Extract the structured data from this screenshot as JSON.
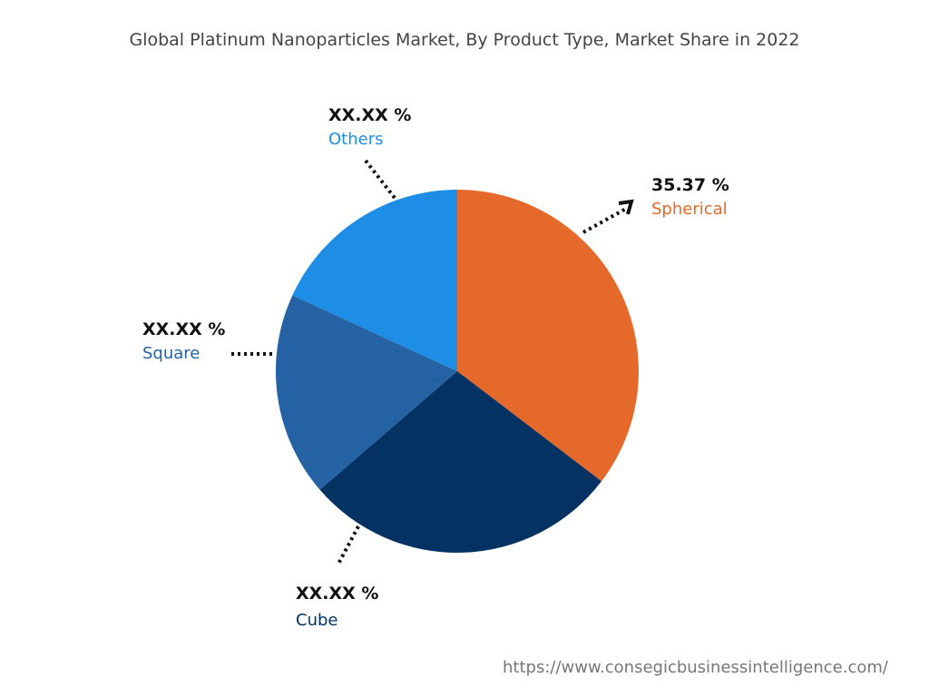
{
  "chart_data": {
    "type": "pie",
    "title": "Global Platinum Nanoparticles Market, By Product Type, Market Share in 2022",
    "slices": [
      {
        "name": "Spherical",
        "value": 35.37,
        "label": "35.37 %",
        "color": "#E4692A"
      },
      {
        "name": "Cube",
        "value": 28.3,
        "label": "XX.XX %",
        "color": "#033263"
      },
      {
        "name": "Square",
        "value": 18.2,
        "label": "XX.XX %",
        "color": "#2462A4"
      },
      {
        "name": "Others",
        "value": 18.13,
        "label": "XX.XX %",
        "color": "#1E8DE5"
      }
    ],
    "start_angle": "12 o'clock, clockwise",
    "legend": "none (callout labels)"
  },
  "source": "https://www.consegicbusinessintelligence.com/"
}
